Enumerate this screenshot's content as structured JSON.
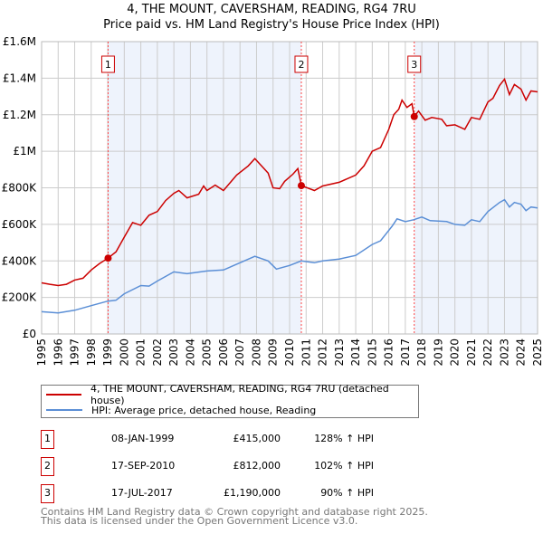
{
  "title": "4, THE MOUNT, CAVERSHAM, READING, RG4 7RU",
  "subtitle": "Price paid vs. HM Land Registry's House Price Index (HPI)",
  "colors": {
    "property": "#cc0000",
    "hpi": "#5b8fd6",
    "shade": "#eef3fc",
    "grid": "#cccccc",
    "marker_line": "#ff4444"
  },
  "chart_data": {
    "type": "line",
    "title": "Price paid vs. HM Land Registry's House Price Index (HPI)",
    "xlim": [
      1995,
      2025
    ],
    "ylim": [
      0,
      1600000
    ],
    "x_ticks": [
      "1995",
      "1996",
      "1997",
      "1998",
      "1999",
      "2000",
      "2001",
      "2002",
      "2003",
      "2004",
      "2005",
      "2006",
      "2007",
      "2008",
      "2009",
      "2010",
      "2011",
      "2012",
      "2013",
      "2014",
      "2015",
      "2016",
      "2017",
      "2018",
      "2019",
      "2020",
      "2021",
      "2022",
      "2023",
      "2024",
      "2025"
    ],
    "y_ticks": [
      {
        "v": 0,
        "label": "£0"
      },
      {
        "v": 200000,
        "label": "£200K"
      },
      {
        "v": 400000,
        "label": "£400K"
      },
      {
        "v": 600000,
        "label": "£600K"
      },
      {
        "v": 800000,
        "label": "£800K"
      },
      {
        "v": 1000000,
        "label": "£1M"
      },
      {
        "v": 1200000,
        "label": "£1.2M"
      },
      {
        "v": 1400000,
        "label": "£1.4M"
      },
      {
        "v": 1600000,
        "label": "£1.6M"
      }
    ],
    "grid": true,
    "series": [
      {
        "name": "4, THE MOUNT, CAVERSHAM, READING, RG4 7RU (detached house)",
        "points": [
          [
            1995,
            280000
          ],
          [
            1995.5,
            272000
          ],
          [
            1996,
            265000
          ],
          [
            1996.5,
            272000
          ],
          [
            1997,
            295000
          ],
          [
            1997.5,
            305000
          ],
          [
            1998,
            350000
          ],
          [
            1998.5,
            385000
          ],
          [
            1999.02,
            415000
          ],
          [
            1999.5,
            450000
          ],
          [
            2000,
            530000
          ],
          [
            2000.5,
            610000
          ],
          [
            2001,
            595000
          ],
          [
            2001.5,
            650000
          ],
          [
            2002,
            670000
          ],
          [
            2002.5,
            730000
          ],
          [
            2003,
            770000
          ],
          [
            2003.3,
            785000
          ],
          [
            2003.8,
            745000
          ],
          [
            2004.5,
            765000
          ],
          [
            2004.8,
            810000
          ],
          [
            2005,
            785000
          ],
          [
            2005.5,
            815000
          ],
          [
            2006,
            785000
          ],
          [
            2006.8,
            870000
          ],
          [
            2007.5,
            920000
          ],
          [
            2007.9,
            960000
          ],
          [
            2008.4,
            910000
          ],
          [
            2008.7,
            880000
          ],
          [
            2009,
            800000
          ],
          [
            2009.4,
            795000
          ],
          [
            2009.7,
            835000
          ],
          [
            2010.2,
            875000
          ],
          [
            2010.5,
            905000
          ],
          [
            2010.71,
            812000
          ],
          [
            2011.5,
            785000
          ],
          [
            2012,
            810000
          ],
          [
            2013,
            830000
          ],
          [
            2014,
            870000
          ],
          [
            2014.5,
            920000
          ],
          [
            2015,
            1000000
          ],
          [
            2015.5,
            1020000
          ],
          [
            2016,
            1120000
          ],
          [
            2016.3,
            1200000
          ],
          [
            2016.6,
            1230000
          ],
          [
            2016.8,
            1280000
          ],
          [
            2017.1,
            1240000
          ],
          [
            2017.4,
            1260000
          ],
          [
            2017.54,
            1190000
          ],
          [
            2017.8,
            1220000
          ],
          [
            2018.2,
            1170000
          ],
          [
            2018.6,
            1185000
          ],
          [
            2019.2,
            1175000
          ],
          [
            2019.5,
            1140000
          ],
          [
            2020,
            1145000
          ],
          [
            2020.6,
            1120000
          ],
          [
            2021,
            1185000
          ],
          [
            2021.5,
            1175000
          ],
          [
            2022,
            1270000
          ],
          [
            2022.3,
            1290000
          ],
          [
            2022.7,
            1360000
          ],
          [
            2023,
            1395000
          ],
          [
            2023.3,
            1310000
          ],
          [
            2023.6,
            1365000
          ],
          [
            2024,
            1340000
          ],
          [
            2024.3,
            1280000
          ],
          [
            2024.6,
            1330000
          ],
          [
            2025,
            1325000
          ]
        ]
      },
      {
        "name": "HPI: Average price, detached house, Reading",
        "points": [
          [
            1995,
            122000
          ],
          [
            1996,
            115000
          ],
          [
            1997,
            130000
          ],
          [
            1998,
            155000
          ],
          [
            1999,
            180000
          ],
          [
            1999.5,
            185000
          ],
          [
            2000,
            220000
          ],
          [
            2001,
            265000
          ],
          [
            2001.5,
            262000
          ],
          [
            2002,
            290000
          ],
          [
            2003,
            340000
          ],
          [
            2003.8,
            330000
          ],
          [
            2005,
            345000
          ],
          [
            2006,
            350000
          ],
          [
            2007,
            390000
          ],
          [
            2007.9,
            425000
          ],
          [
            2008.7,
            400000
          ],
          [
            2009.2,
            355000
          ],
          [
            2010,
            375000
          ],
          [
            2010.7,
            400000
          ],
          [
            2011.5,
            390000
          ],
          [
            2012,
            400000
          ],
          [
            2013,
            410000
          ],
          [
            2014,
            430000
          ],
          [
            2015,
            490000
          ],
          [
            2015.5,
            510000
          ],
          [
            2016.2,
            590000
          ],
          [
            2016.5,
            630000
          ],
          [
            2017,
            615000
          ],
          [
            2017.5,
            625000
          ],
          [
            2018,
            640000
          ],
          [
            2018.5,
            620000
          ],
          [
            2019.5,
            615000
          ],
          [
            2020,
            600000
          ],
          [
            2020.6,
            595000
          ],
          [
            2021,
            625000
          ],
          [
            2021.5,
            615000
          ],
          [
            2022,
            670000
          ],
          [
            2022.7,
            720000
          ],
          [
            2023,
            735000
          ],
          [
            2023.3,
            695000
          ],
          [
            2023.6,
            720000
          ],
          [
            2024,
            710000
          ],
          [
            2024.3,
            675000
          ],
          [
            2024.6,
            695000
          ],
          [
            2025,
            690000
          ]
        ]
      }
    ],
    "sales": [
      {
        "num": "1",
        "x": 1999.02,
        "price": 415000
      },
      {
        "num": "2",
        "x": 2010.71,
        "price": 812000
      },
      {
        "num": "3",
        "x": 2017.54,
        "price": 1190000
      }
    ],
    "legend_position": "below"
  },
  "legend": [
    {
      "label": "4, THE MOUNT, CAVERSHAM, READING, RG4 7RU (detached house)"
    },
    {
      "label": "HPI: Average price, detached house, Reading"
    }
  ],
  "transactions": [
    {
      "num": "1",
      "date": "08-JAN-1999",
      "price": "£415,000",
      "hpi": "128% ↑ HPI"
    },
    {
      "num": "2",
      "date": "17-SEP-2010",
      "price": "£812,000",
      "hpi": "102% ↑ HPI"
    },
    {
      "num": "3",
      "date": "17-JUL-2017",
      "price": "£1,190,000",
      "hpi": "90% ↑ HPI"
    }
  ],
  "footer": [
    "Contains HM Land Registry data © Crown copyright and database right 2025.",
    "This data is licensed under the Open Government Licence v3.0."
  ]
}
